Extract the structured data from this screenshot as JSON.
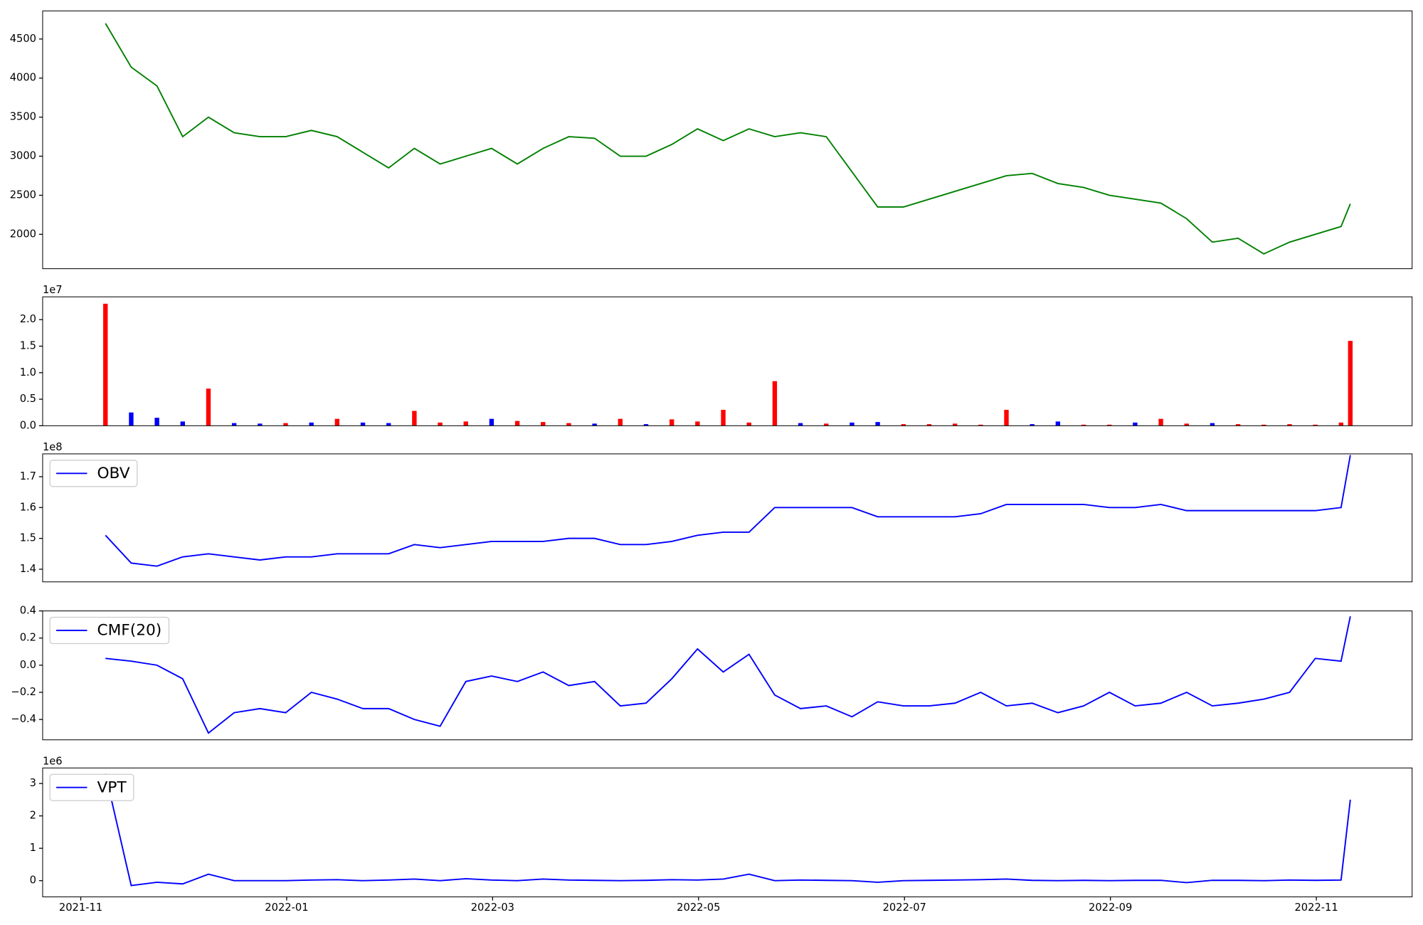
{
  "chart_data": [
    {
      "type": "line",
      "xlim": [
        -0.37,
        12.93
      ],
      "ylim": [
        1560,
        4860
      ],
      "yticks": [
        2000,
        2500,
        3000,
        3500,
        4000,
        4500
      ],
      "x": [
        0.24,
        0.49,
        0.74,
        0.99,
        1.24,
        1.49,
        1.74,
        1.99,
        2.24,
        2.49,
        2.74,
        2.99,
        3.24,
        3.49,
        3.74,
        3.99,
        4.24,
        4.49,
        4.74,
        4.99,
        5.24,
        5.49,
        5.74,
        5.99,
        6.24,
        6.49,
        6.74,
        6.99,
        7.24,
        7.49,
        7.74,
        7.99,
        8.24,
        8.49,
        8.74,
        8.99,
        9.24,
        9.49,
        9.74,
        9.99,
        10.24,
        10.49,
        10.74,
        10.99,
        11.24,
        11.49,
        11.74,
        11.99,
        12.24,
        12.33
      ],
      "series": [
        {
          "color": "#008000",
          "values": [
            4700,
            4140,
            3900,
            3250,
            3500,
            3300,
            3250,
            3250,
            3330,
            3250,
            3050,
            2850,
            3100,
            2900,
            3000,
            3100,
            2900,
            3100,
            3250,
            3230,
            3000,
            3000,
            3150,
            3350,
            3200,
            3350,
            3250,
            3300,
            3250,
            2800,
            2350,
            2350,
            2450,
            2550,
            2650,
            2750,
            2780,
            2650,
            2600,
            2500,
            2450,
            2400,
            2200,
            1900,
            1950,
            1750,
            1900,
            2000,
            2100,
            2390
          ]
        }
      ]
    },
    {
      "type": "bar",
      "xlim": [
        -0.37,
        12.93
      ],
      "ylim": [
        0,
        24300000
      ],
      "y_offset_label": "1e7",
      "yticks": [
        {
          "value": 0,
          "label": "0.0"
        },
        {
          "value": 5000000,
          "label": "0.5"
        },
        {
          "value": 10000000,
          "label": "1.0"
        },
        {
          "value": 15000000,
          "label": "1.5"
        },
        {
          "value": 20000000,
          "label": "2.0"
        }
      ],
      "x": [
        0.24,
        0.49,
        0.74,
        0.99,
        1.24,
        1.49,
        1.74,
        1.99,
        2.24,
        2.49,
        2.74,
        2.99,
        3.24,
        3.49,
        3.74,
        3.99,
        4.24,
        4.49,
        4.74,
        4.99,
        5.24,
        5.49,
        5.74,
        5.99,
        6.24,
        6.49,
        6.74,
        6.99,
        7.24,
        7.49,
        7.74,
        7.99,
        8.24,
        8.49,
        8.74,
        8.99,
        9.24,
        9.49,
        9.74,
        9.99,
        10.24,
        10.49,
        10.74,
        10.99,
        11.24,
        11.49,
        11.74,
        11.99,
        12.24,
        12.33
      ],
      "values": [
        23000000,
        2500000,
        1500000,
        800000,
        7000000,
        500000,
        400000,
        500000,
        600000,
        1300000,
        600000,
        500000,
        2800000,
        600000,
        800000,
        1300000,
        900000,
        700000,
        500000,
        400000,
        1300000,
        300000,
        1200000,
        800000,
        3000000,
        600000,
        8400000,
        500000,
        400000,
        600000,
        700000,
        300000,
        300000,
        400000,
        200000,
        3000000,
        300000,
        800000,
        200000,
        200000,
        600000,
        1300000,
        400000,
        500000,
        300000,
        200000,
        300000,
        200000,
        600000,
        16000000
      ],
      "colors": [
        "red",
        "blue",
        "blue",
        "blue",
        "red",
        "blue",
        "blue",
        "red",
        "blue",
        "red",
        "blue",
        "blue",
        "red",
        "red",
        "red",
        "blue",
        "red",
        "red",
        "red",
        "blue",
        "red",
        "blue",
        "red",
        "red",
        "red",
        "red",
        "red",
        "blue",
        "red",
        "blue",
        "blue",
        "red",
        "red",
        "red",
        "red",
        "red",
        "blue",
        "blue",
        "red",
        "red",
        "blue",
        "red",
        "red",
        "blue",
        "red",
        "red",
        "red",
        "red",
        "red",
        "red"
      ]
    },
    {
      "type": "line",
      "xlim": [
        -0.37,
        12.93
      ],
      "ylim": [
        135900000,
        177400000
      ],
      "y_offset_label": "1e8",
      "legend": "upper left",
      "yticks": [
        {
          "value": 140000000,
          "label": "1.4"
        },
        {
          "value": 150000000,
          "label": "1.5"
        },
        {
          "value": 160000000,
          "label": "1.6"
        },
        {
          "value": 170000000,
          "label": "1.7"
        }
      ],
      "x": [
        0.24,
        0.49,
        0.74,
        0.99,
        1.24,
        1.49,
        1.74,
        1.99,
        2.24,
        2.49,
        2.74,
        2.99,
        3.24,
        3.49,
        3.74,
        3.99,
        4.24,
        4.49,
        4.74,
        4.99,
        5.24,
        5.49,
        5.74,
        5.99,
        6.24,
        6.49,
        6.74,
        6.99,
        7.24,
        7.49,
        7.74,
        7.99,
        8.24,
        8.49,
        8.74,
        8.99,
        9.24,
        9.49,
        9.74,
        9.99,
        10.24,
        10.49,
        10.74,
        10.99,
        11.24,
        11.49,
        11.74,
        11.99,
        12.24,
        12.33
      ],
      "series": [
        {
          "name": "OBV",
          "color": "#0000ff",
          "values": [
            151000000,
            142000000,
            141000000,
            144000000,
            145000000,
            144000000,
            143000000,
            144000000,
            144000000,
            145000000,
            145000000,
            145000000,
            148000000,
            147000000,
            148000000,
            149000000,
            149000000,
            149000000,
            150000000,
            150000000,
            148000000,
            148000000,
            149000000,
            151000000,
            152000000,
            152000000,
            160000000,
            160000000,
            160000000,
            160000000,
            157000000,
            157000000,
            157000000,
            157000000,
            158000000,
            161000000,
            161000000,
            161000000,
            161000000,
            160000000,
            160000000,
            161000000,
            159000000,
            159000000,
            159000000,
            159000000,
            159000000,
            159000000,
            160000000,
            177000000
          ]
        }
      ]
    },
    {
      "type": "line",
      "xlim": [
        -0.37,
        12.93
      ],
      "ylim": [
        -0.55,
        0.4
      ],
      "legend": "upper left",
      "yticks": [
        {
          "value": -0.4,
          "label": "−0.4"
        },
        {
          "value": -0.2,
          "label": "−0.2"
        },
        {
          "value": 0,
          "label": "0.0"
        },
        0.2,
        0.4
      ],
      "x": [
        0.24,
        0.49,
        0.74,
        0.99,
        1.24,
        1.49,
        1.74,
        1.99,
        2.24,
        2.49,
        2.74,
        2.99,
        3.24,
        3.49,
        3.74,
        3.99,
        4.24,
        4.49,
        4.74,
        4.99,
        5.24,
        5.49,
        5.74,
        5.99,
        6.24,
        6.49,
        6.74,
        6.99,
        7.24,
        7.49,
        7.74,
        7.99,
        8.24,
        8.49,
        8.74,
        8.99,
        9.24,
        9.49,
        9.74,
        9.99,
        10.24,
        10.49,
        10.74,
        10.99,
        11.24,
        11.49,
        11.74,
        11.99,
        12.24,
        12.33
      ],
      "series": [
        {
          "name": "CMF(20)",
          "color": "#0000ff",
          "values": [
            0.05,
            0.03,
            0.0,
            -0.1,
            -0.5,
            -0.35,
            -0.32,
            -0.35,
            -0.2,
            -0.25,
            -0.32,
            -0.32,
            -0.4,
            -0.45,
            -0.12,
            -0.08,
            -0.12,
            -0.05,
            -0.15,
            -0.12,
            -0.3,
            -0.28,
            -0.1,
            0.12,
            -0.05,
            0.08,
            -0.22,
            -0.32,
            -0.3,
            -0.38,
            -0.27,
            -0.3,
            -0.3,
            -0.28,
            -0.2,
            -0.3,
            -0.28,
            -0.35,
            -0.3,
            -0.2,
            -0.3,
            -0.28,
            -0.2,
            -0.3,
            -0.28,
            -0.25,
            -0.2,
            0.05,
            0.03,
            0.36
          ]
        }
      ]
    },
    {
      "type": "line",
      "xlim": [
        -0.37,
        12.93
      ],
      "ylim": [
        -500000,
        3480000
      ],
      "y_offset_label": "1e6",
      "legend": "upper left",
      "yticks": [
        {
          "value": 0,
          "label": "0"
        },
        {
          "value": 1000000,
          "label": "1"
        },
        {
          "value": 2000000,
          "label": "2"
        },
        {
          "value": 3000000,
          "label": "3"
        }
      ],
      "xticks": [
        {
          "value": 0,
          "label": "2021-11"
        },
        {
          "value": 2,
          "label": "2022-01"
        },
        {
          "value": 4,
          "label": "2022-03"
        },
        {
          "value": 6,
          "label": "2022-05"
        },
        {
          "value": 8,
          "label": "2022-07"
        },
        {
          "value": 10,
          "label": "2022-09"
        },
        {
          "value": 12,
          "label": "2022-11"
        }
      ],
      "x": [
        0.24,
        0.49,
        0.74,
        0.99,
        1.24,
        1.49,
        1.74,
        1.99,
        2.24,
        2.49,
        2.74,
        2.99,
        3.24,
        3.49,
        3.74,
        3.99,
        4.24,
        4.49,
        4.74,
        4.99,
        5.24,
        5.49,
        5.74,
        5.99,
        6.24,
        6.49,
        6.74,
        6.99,
        7.24,
        7.49,
        7.74,
        7.99,
        8.24,
        8.49,
        8.74,
        8.99,
        9.24,
        9.49,
        9.74,
        9.99,
        10.24,
        10.49,
        10.74,
        10.99,
        11.24,
        11.49,
        11.74,
        11.99,
        12.24,
        12.33
      ],
      "series": [
        {
          "name": "VPT",
          "color": "#0000ff",
          "values": [
            3300000,
            -150000,
            -50000,
            -100000,
            200000,
            0,
            0,
            0,
            20000,
            30000,
            0,
            20000,
            50000,
            0,
            60000,
            20000,
            0,
            50000,
            20000,
            10000,
            0,
            10000,
            30000,
            20000,
            50000,
            200000,
            0,
            20000,
            10000,
            0,
            -50000,
            0,
            10000,
            20000,
            30000,
            50000,
            10000,
            0,
            10000,
            0,
            10000,
            10000,
            -60000,
            10000,
            10000,
            0,
            20000,
            10000,
            20000,
            2500000
          ]
        }
      ]
    }
  ]
}
